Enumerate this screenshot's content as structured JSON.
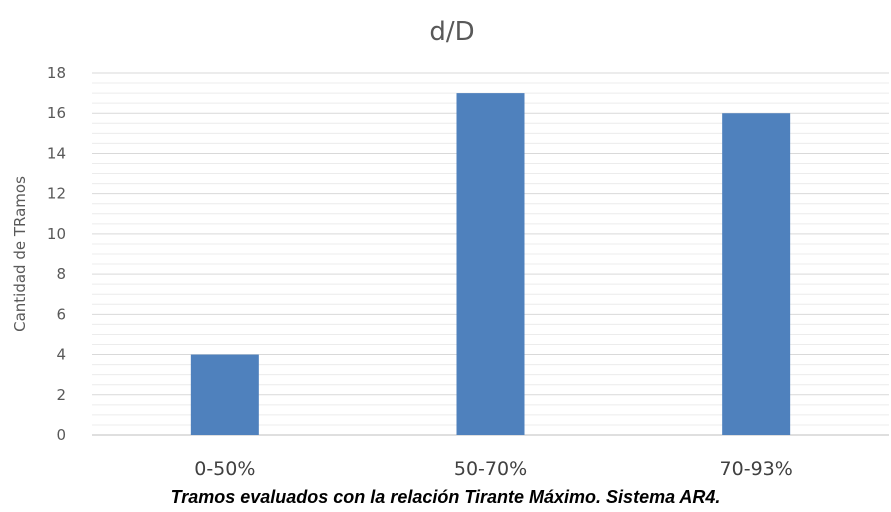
{
  "chart_data": {
    "type": "bar",
    "title": "d/D",
    "xlabel": "",
    "ylabel": "Cantidad de TRamos",
    "categories": [
      "0-50%",
      "50-70%",
      "70-93%"
    ],
    "values": [
      4,
      17,
      16
    ],
    "ylim": [
      0,
      18
    ],
    "yticks": [
      0,
      2,
      4,
      6,
      8,
      10,
      12,
      14,
      16,
      18
    ],
    "grid": true,
    "legend": "none",
    "bar_color": "#4f81bd"
  },
  "caption": "Tramos evaluados con la relación Tirante Máximo. Sistema AR4."
}
